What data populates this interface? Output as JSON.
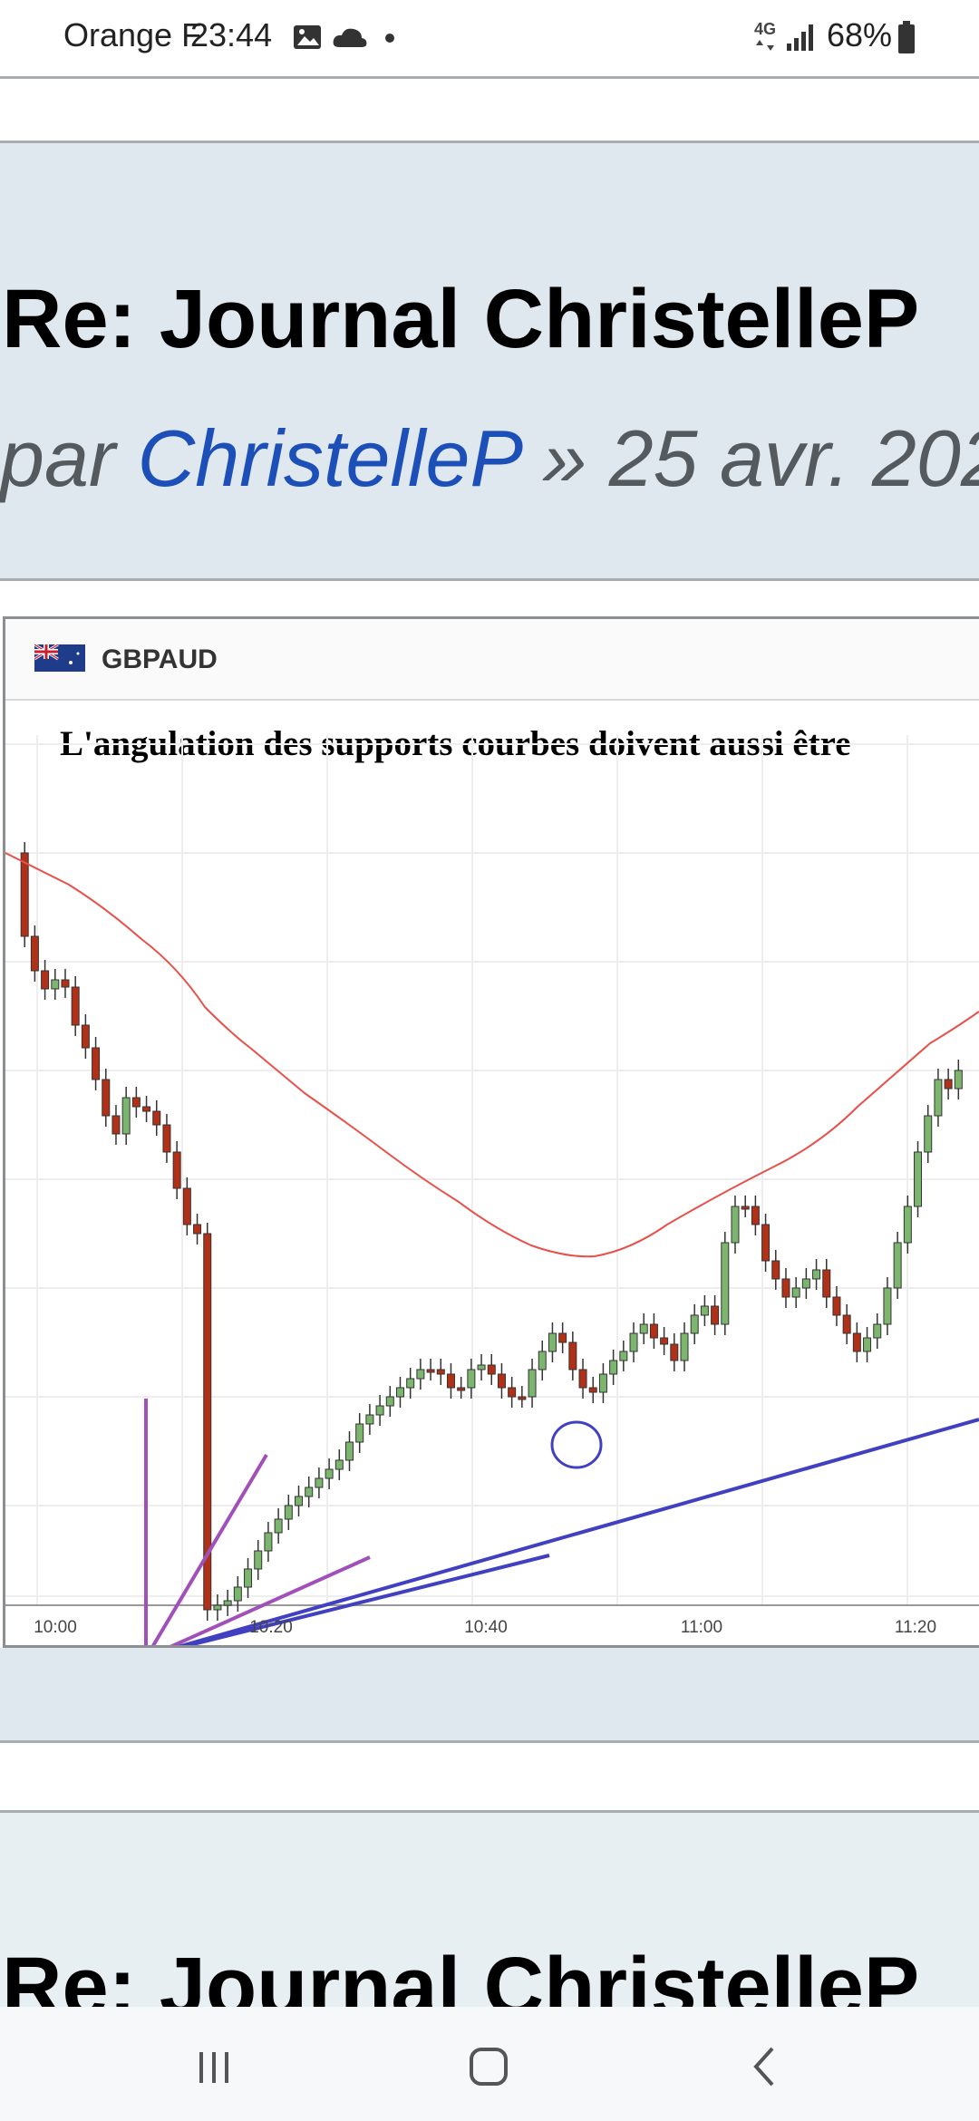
{
  "status_bar": {
    "carrier": "Orange F",
    "time": "23:44",
    "network": "4G",
    "battery": "68%"
  },
  "post": {
    "title": "Re: Journal ChristelleP",
    "author_prefix": "par",
    "author": "ChristelleP",
    "date_sep": "»",
    "date": "25 avr. 202"
  },
  "chart_card": {
    "pair": "GBPAUD",
    "flag_icon": "uk-australia-flag-icon"
  },
  "chart_data": {
    "type": "candlestick",
    "title": "L'angulation des supports courbes doivent aussi être",
    "xlabel": "",
    "ylabel": "",
    "x_ticks": [
      "10:00",
      "10:20",
      "10:40",
      "11:00",
      "11:20"
    ],
    "grid": true,
    "colors": {
      "up": "#7cb56e",
      "down": "#b03018",
      "ma": "#e8504a",
      "trend": "#4040c0",
      "annotation": "#a050b8"
    },
    "series": [
      {
        "name": "",
        "type": "moving-average-line"
      },
      {
        "name": "",
        "type": "support-trendline"
      }
    ]
  },
  "post2": {
    "title": "Re: Journal ChristelleP"
  },
  "nav": {
    "recents": "recents-icon",
    "home": "home-icon",
    "back": "back-icon"
  }
}
